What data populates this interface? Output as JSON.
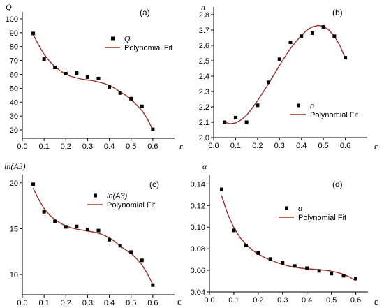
{
  "colors": {
    "marker": "#000000",
    "fit_line": "#9b2f26",
    "axes": "#000000"
  },
  "chart_data": [
    {
      "panel": "(a)",
      "type": "scatter",
      "ylabel": "Q",
      "xlabel": "ε",
      "xlim": [
        0,
        0.7
      ],
      "ylim": [
        14,
        105
      ],
      "xticks": [
        "0.0",
        "0.1",
        "0.2",
        "0.3",
        "0.4",
        "0.5",
        "0.6"
      ],
      "yticks": [
        "20",
        "30",
        "40",
        "50",
        "60",
        "70",
        "80",
        "90",
        "100"
      ],
      "grid": false,
      "legend_placement": "top-center",
      "series": [
        {
          "name": "Q",
          "style": "markers",
          "x": [
            0.05,
            0.1,
            0.15,
            0.2,
            0.25,
            0.3,
            0.35,
            0.4,
            0.45,
            0.5,
            0.55,
            0.6
          ],
          "y": [
            89.5,
            71,
            65,
            60.5,
            61,
            58,
            57,
            51,
            46.5,
            42.5,
            37,
            20.5
          ]
        },
        {
          "name": "Polynomial Fit",
          "style": "line",
          "x": [
            0.05,
            0.075,
            0.1,
            0.125,
            0.15,
            0.175,
            0.2,
            0.225,
            0.25,
            0.275,
            0.3,
            0.325,
            0.35,
            0.375,
            0.4,
            0.425,
            0.45,
            0.475,
            0.5,
            0.525,
            0.55,
            0.575,
            0.6
          ],
          "y": [
            88.5,
            81,
            74.5,
            69.5,
            65.5,
            62.5,
            60,
            58.5,
            57.5,
            56.5,
            56,
            55.5,
            54.5,
            53.5,
            52,
            50,
            47.5,
            45,
            42,
            38,
            34,
            28,
            20
          ]
        }
      ]
    },
    {
      "panel": "(b)",
      "type": "scatter",
      "ylabel": "n",
      "xlabel": "ε",
      "xlim": [
        0,
        0.7
      ],
      "ylim": [
        2.0,
        2.85
      ],
      "xticks": [
        "0.0",
        "0.1",
        "0.2",
        "0.3",
        "0.4",
        "0.5",
        "0.6"
      ],
      "yticks": [
        "2.0",
        "2.1",
        "2.2",
        "2.3",
        "2.4",
        "2.5",
        "2.6",
        "2.7",
        "2.8"
      ],
      "grid": false,
      "legend_placement": "bottom-right",
      "series": [
        {
          "name": "n",
          "style": "markers",
          "x": [
            0.05,
            0.1,
            0.15,
            0.2,
            0.25,
            0.3,
            0.35,
            0.4,
            0.45,
            0.5,
            0.55,
            0.6
          ],
          "y": [
            2.1,
            2.13,
            2.1,
            2.21,
            2.36,
            2.51,
            2.62,
            2.66,
            2.68,
            2.72,
            2.66,
            2.52
          ]
        },
        {
          "name": "Polynomial Fit",
          "style": "line",
          "x": [
            0.05,
            0.075,
            0.1,
            0.125,
            0.15,
            0.175,
            0.2,
            0.225,
            0.25,
            0.275,
            0.3,
            0.325,
            0.35,
            0.375,
            0.4,
            0.425,
            0.45,
            0.475,
            0.5,
            0.525,
            0.55,
            0.575,
            0.6
          ],
          "y": [
            2.1,
            2.09,
            2.095,
            2.115,
            2.145,
            2.19,
            2.24,
            2.295,
            2.35,
            2.41,
            2.47,
            2.525,
            2.58,
            2.625,
            2.665,
            2.7,
            2.72,
            2.73,
            2.725,
            2.7,
            2.66,
            2.6,
            2.515
          ]
        }
      ]
    },
    {
      "panel": "(c)",
      "type": "scatter",
      "ylabel": "ln(A3)",
      "xlabel": "ε",
      "xlim": [
        0,
        0.7
      ],
      "ylim": [
        7.8,
        20.9
      ],
      "xticks": [
        "0.0",
        "0.1",
        "0.2",
        "0.3",
        "0.4",
        "0.5",
        "0.6"
      ],
      "yticks": [
        "10",
        "15",
        "20"
      ],
      "grid": false,
      "legend_placement": "top-center",
      "series": [
        {
          "name": "ln(A3)",
          "style": "markers",
          "x": [
            0.05,
            0.1,
            0.15,
            0.2,
            0.25,
            0.3,
            0.35,
            0.4,
            0.45,
            0.5,
            0.55,
            0.6
          ],
          "y": [
            19.85,
            16.85,
            15.8,
            15.2,
            15.25,
            14.9,
            14.8,
            13.8,
            13.15,
            12.45,
            11.55,
            8.85
          ]
        },
        {
          "name": "Polynomial Fit",
          "style": "line",
          "x": [
            0.05,
            0.075,
            0.1,
            0.125,
            0.15,
            0.175,
            0.2,
            0.225,
            0.25,
            0.275,
            0.3,
            0.325,
            0.35,
            0.375,
            0.4,
            0.425,
            0.45,
            0.475,
            0.5,
            0.525,
            0.55,
            0.575,
            0.6
          ],
          "y": [
            19.4,
            18.2,
            17.2,
            16.5,
            16.0,
            15.6,
            15.3,
            15.1,
            14.95,
            14.85,
            14.75,
            14.65,
            14.5,
            14.3,
            14.0,
            13.6,
            13.1,
            12.7,
            12.3,
            11.75,
            11.05,
            10.1,
            8.9
          ]
        }
      ]
    },
    {
      "panel": "(d)",
      "type": "scatter",
      "ylabel": "α",
      "xlabel": "ε",
      "xlim": [
        0,
        0.65
      ],
      "ylim": [
        0.04,
        0.148
      ],
      "xticks": [
        "0.0",
        "0.1",
        "0.2",
        "0.3",
        "0.4",
        "0.5",
        "0.6"
      ],
      "yticks": [
        "0.04",
        "0.06",
        "0.08",
        "0.10",
        "0.12",
        "0.14"
      ],
      "grid": false,
      "legend_placement": "top-right",
      "series": [
        {
          "name": "α",
          "style": "markers",
          "x": [
            0.05,
            0.1,
            0.15,
            0.2,
            0.25,
            0.3,
            0.35,
            0.4,
            0.45,
            0.5,
            0.55,
            0.6
          ],
          "y": [
            0.135,
            0.097,
            0.083,
            0.076,
            0.0705,
            0.067,
            0.064,
            0.062,
            0.0595,
            0.057,
            0.055,
            0.0525
          ]
        },
        {
          "name": "Polynomial Fit",
          "style": "line",
          "x": [
            0.05,
            0.075,
            0.1,
            0.125,
            0.15,
            0.175,
            0.2,
            0.225,
            0.25,
            0.275,
            0.3,
            0.325,
            0.35,
            0.375,
            0.4,
            0.425,
            0.45,
            0.475,
            0.5,
            0.525,
            0.55,
            0.575,
            0.6
          ],
          "y": [
            0.129,
            0.112,
            0.0995,
            0.0905,
            0.084,
            0.079,
            0.075,
            0.072,
            0.0695,
            0.0675,
            0.0655,
            0.064,
            0.063,
            0.062,
            0.0615,
            0.061,
            0.0605,
            0.06,
            0.0593,
            0.058,
            0.0563,
            0.0538,
            0.0503
          ]
        }
      ]
    }
  ]
}
